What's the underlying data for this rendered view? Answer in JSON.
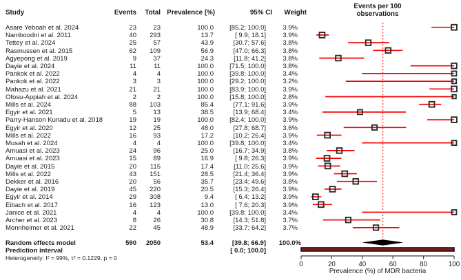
{
  "figure": {
    "columns": {
      "study": "Study",
      "events": "Events",
      "total": "Total",
      "prevalence": "Prevalence (%)",
      "ci": "95% CI",
      "weight": "Weight"
    },
    "plot_title_line1": "Events per 100",
    "plot_title_line2": "observations",
    "heterogeneity": "Heterogeneity: I² = 99%, τ² = 0.1229, p = 0"
  },
  "chart_data": {
    "type": "forest",
    "title": "Events per 100 observations",
    "xlabel": "Prevalence (%) of MDR bacteria",
    "xlim": [
      0,
      100
    ],
    "xticks": [
      0,
      20,
      40,
      60,
      80,
      100
    ],
    "reference_line": 53.4,
    "studies": [
      {
        "study": "Asare Yeboah et al. 2024",
        "events": 23,
        "total": 23,
        "prevalence": "100.0",
        "ci": "[85.2; 100.0]",
        "ci_lo": 85.2,
        "ci_hi": 100.0,
        "weight": "3.9%"
      },
      {
        "study": "Namboodiri et al. 2011",
        "events": 40,
        "total": 293,
        "prevalence": "13.7",
        "ci": "[ 9.9; 18.1]",
        "ci_lo": 9.9,
        "ci_hi": 18.1,
        "weight": "3.9%"
      },
      {
        "study": "Tettey et al. 2024",
        "events": 25,
        "total": 57,
        "prevalence": "43.9",
        "ci": "[30.7; 57.6]",
        "ci_lo": 30.7,
        "ci_hi": 57.6,
        "weight": "3.8%"
      },
      {
        "study": "Rasmussen et al. 2015",
        "events": 62,
        "total": 109,
        "prevalence": "56.9",
        "ci": "[47.0; 66.3]",
        "ci_lo": 47.0,
        "ci_hi": 66.3,
        "weight": "3.8%"
      },
      {
        "study": "Agyepong et al. 2019",
        "events": 9,
        "total": 37,
        "prevalence": "24.3",
        "ci": "[11.8; 41.2]",
        "ci_lo": 11.8,
        "ci_hi": 41.2,
        "weight": "3.8%"
      },
      {
        "study": "Dayie et al. 2024",
        "events": 11,
        "total": 11,
        "prevalence": "100.0",
        "ci": "[71.5; 100.0]",
        "ci_lo": 71.5,
        "ci_hi": 100.0,
        "weight": "3.8%"
      },
      {
        "study": "Pankok et al. 2022",
        "events": 4,
        "total": 4,
        "prevalence": "100.0",
        "ci": "[39.8; 100.0]",
        "ci_lo": 39.8,
        "ci_hi": 100.0,
        "weight": "3.4%"
      },
      {
        "study": "Pankok et al. 2022",
        "events": 3,
        "total": 3,
        "prevalence": "100.0",
        "ci": "[29.2; 100.0]",
        "ci_lo": 29.2,
        "ci_hi": 100.0,
        "weight": "3.2%"
      },
      {
        "study": "Mahazu et al. 2021",
        "events": 21,
        "total": 21,
        "prevalence": "100.0",
        "ci": "[83.9; 100.0]",
        "ci_lo": 83.9,
        "ci_hi": 100.0,
        "weight": "3.9%"
      },
      {
        "study": "Ofosu-Appiah et al. 2024",
        "events": 2,
        "total": 2,
        "prevalence": "100.0",
        "ci": "[15.8; 100.0]",
        "ci_lo": 15.8,
        "ci_hi": 100.0,
        "weight": "2.8%"
      },
      {
        "study": "Mills et al. 2024",
        "events": 88,
        "total": 103,
        "prevalence": "85.4",
        "ci": "[77.1; 91.6]",
        "ci_lo": 77.1,
        "ci_hi": 91.6,
        "weight": "3.9%"
      },
      {
        "study": "Egyir et al. 2021",
        "events": 5,
        "total": 13,
        "prevalence": "38.5",
        "ci": "[13.9; 68.4]",
        "ci_lo": 13.9,
        "ci_hi": 68.4,
        "weight": "3.4%"
      },
      {
        "study": "Parry-Hanson Kunadu et al. 2018",
        "events": 19,
        "total": 19,
        "prevalence": "100.0",
        "ci": "[82.4; 100.0]",
        "ci_lo": 82.4,
        "ci_hi": 100.0,
        "weight": "3.9%"
      },
      {
        "study": "Egyir et al. 2020",
        "events": 12,
        "total": 25,
        "prevalence": "48.0",
        "ci": "[27.8; 68.7]",
        "ci_lo": 27.8,
        "ci_hi": 68.7,
        "weight": "3.6%"
      },
      {
        "study": "Mills et al. 2022",
        "events": 16,
        "total": 93,
        "prevalence": "17.2",
        "ci": "[10.2; 26.4]",
        "ci_lo": 10.2,
        "ci_hi": 26.4,
        "weight": "3.9%"
      },
      {
        "study": "Musah et al. 2024",
        "events": 4,
        "total": 4,
        "prevalence": "100.0",
        "ci": "[39.8; 100.0]",
        "ci_lo": 39.8,
        "ci_hi": 100.0,
        "weight": "3.4%"
      },
      {
        "study": "Amuasi et al. 2023",
        "events": 24,
        "total": 96,
        "prevalence": "25.0",
        "ci": "[16.7; 34.9]",
        "ci_lo": 16.7,
        "ci_hi": 34.9,
        "weight": "3.8%"
      },
      {
        "study": "Amuasi et al. 2023",
        "events": 15,
        "total": 89,
        "prevalence": "16.9",
        "ci": "[ 9.8; 26.3]",
        "ci_lo": 9.8,
        "ci_hi": 26.3,
        "weight": "3.9%"
      },
      {
        "study": "Dayie et al. 2015",
        "events": 20,
        "total": 115,
        "prevalence": "17.4",
        "ci": "[11.0; 25.6]",
        "ci_lo": 11.0,
        "ci_hi": 25.6,
        "weight": "3.9%"
      },
      {
        "study": "Mills et al. 2022",
        "events": 43,
        "total": 151,
        "prevalence": "28.5",
        "ci": "[21.4; 36.4]",
        "ci_lo": 21.4,
        "ci_hi": 36.4,
        "weight": "3.9%"
      },
      {
        "study": "Dekker et al. 2016",
        "events": 20,
        "total": 56,
        "prevalence": "35.7",
        "ci": "[23.4; 49.6]",
        "ci_lo": 23.4,
        "ci_hi": 49.6,
        "weight": "3.8%"
      },
      {
        "study": "Dayie et al. 2019",
        "events": 45,
        "total": 220,
        "prevalence": "20.5",
        "ci": "[15.3; 26.4]",
        "ci_lo": 15.3,
        "ci_hi": 26.4,
        "weight": "3.9%"
      },
      {
        "study": "Egyir et al. 2014",
        "events": 29,
        "total": 308,
        "prevalence": "9.4",
        "ci": "[ 6.4; 13.2]",
        "ci_lo": 6.4,
        "ci_hi": 13.2,
        "weight": "3.9%"
      },
      {
        "study": "Eibach et al. 2017",
        "events": 16,
        "total": 123,
        "prevalence": "13.0",
        "ci": "[ 7.6; 20.3]",
        "ci_lo": 7.6,
        "ci_hi": 20.3,
        "weight": "3.9%"
      },
      {
        "study": "Janice et al. 2021",
        "events": 4,
        "total": 4,
        "prevalence": "100.0",
        "ci": "[39.8; 100.0]",
        "ci_lo": 39.8,
        "ci_hi": 100.0,
        "weight": "3.4%"
      },
      {
        "study": "Archer et al. 2023",
        "events": 8,
        "total": 26,
        "prevalence": "30.8",
        "ci": "[14.3; 51.8]",
        "ci_lo": 14.3,
        "ci_hi": 51.8,
        "weight": "3.7%"
      },
      {
        "study": "Monnheimer et al. 2021",
        "events": 22,
        "total": 45,
        "prevalence": "48.9",
        "ci": "[33.7; 64.2]",
        "ci_lo": 33.7,
        "ci_hi": 64.2,
        "weight": "3.7%"
      }
    ],
    "summary": {
      "label": "Random effects model",
      "events": 590,
      "total": 2050,
      "prevalence": "53.4",
      "ci": "[39.8; 66.9]",
      "ci_lo": 39.8,
      "ci_hi": 66.9,
      "weight": "100.0%"
    },
    "prediction": {
      "label": "Prediction interval",
      "ci": "[ 0.0; 100.0]",
      "ci_lo": 0.0,
      "ci_hi": 100.0
    },
    "legend_position": "none",
    "grid": false,
    "colors": {
      "ci_line": "#f40000",
      "reference_line": "#ff3030",
      "square_border": "#2b2b2b",
      "diamond": "#000000",
      "prediction_fill": "#8b1a1a",
      "prediction_border": "#111111",
      "axis": "#3a3a3a",
      "text": "#1a1a1a"
    }
  }
}
